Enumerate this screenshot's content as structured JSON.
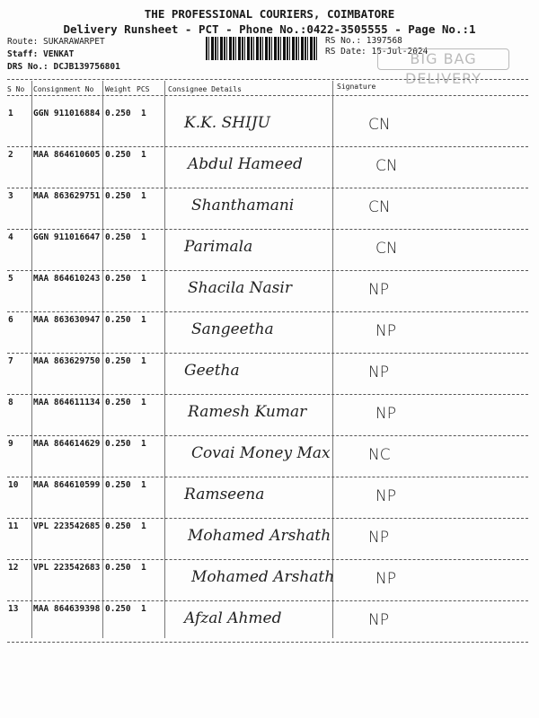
{
  "header": {
    "company": "THE PROFESSIONAL COURIERS, COIMBATORE",
    "subtitle": "Delivery Runsheet - PCT - Phone No.:0422-3505555 - Page No.:1",
    "route": "Route: SUKARAWARPET",
    "staff": "Staff: VENKAT",
    "drs": "DRS No.: DCJB139756801",
    "rs_no": "RS No.: 1397568",
    "rs_date": "RS Date: 15-Jul-2024",
    "stamp": "BIG BAG DELIVERY"
  },
  "columns": {
    "sno": "S No",
    "consignment": "Consignment No",
    "weight": "Weight",
    "pcs": "PCS",
    "consignee": "Consignee Details",
    "signature": "Signature"
  },
  "rows": [
    {
      "sno": "1",
      "consignment": "GGN 911016884",
      "weight": "0.250",
      "pcs": "1",
      "consignee": "K.K. SHIJU",
      "signature": "CN"
    },
    {
      "sno": "2",
      "consignment": "MAA 864610605",
      "weight": "0.250",
      "pcs": "1",
      "consignee": "Abdul Hameed",
      "signature": "CN"
    },
    {
      "sno": "3",
      "consignment": "MAA 863629751",
      "weight": "0.250",
      "pcs": "1",
      "consignee": "Shanthamani",
      "signature": "CN"
    },
    {
      "sno": "4",
      "consignment": "GGN 911016647",
      "weight": "0.250",
      "pcs": "1",
      "consignee": "Parimala",
      "signature": "CN"
    },
    {
      "sno": "5",
      "consignment": "MAA 864610243",
      "weight": "0.250",
      "pcs": "1",
      "consignee": "Shacila Nasir",
      "signature": "NP"
    },
    {
      "sno": "6",
      "consignment": "MAA 863630947",
      "weight": "0.250",
      "pcs": "1",
      "consignee": "Sangeetha",
      "signature": "NP"
    },
    {
      "sno": "7",
      "consignment": "MAA 863629750",
      "weight": "0.250",
      "pcs": "1",
      "consignee": "Geetha",
      "signature": "NP"
    },
    {
      "sno": "8",
      "consignment": "MAA 864611134",
      "weight": "0.250",
      "pcs": "1",
      "consignee": "Ramesh Kumar",
      "signature": "NP"
    },
    {
      "sno": "9",
      "consignment": "MAA 864614629",
      "weight": "0.250",
      "pcs": "1",
      "consignee": "Covai Money Max",
      "signature": "NC"
    },
    {
      "sno": "10",
      "consignment": "MAA 864610599",
      "weight": "0.250",
      "pcs": "1",
      "consignee": "Ramseena",
      "signature": "NP"
    },
    {
      "sno": "11",
      "consignment": "VPL 223542685",
      "weight": "0.250",
      "pcs": "1",
      "consignee": "Mohamed Arshath",
      "signature": "NP"
    },
    {
      "sno": "12",
      "consignment": "VPL 223542683",
      "weight": "0.250",
      "pcs": "1",
      "consignee": "Mohamed Arshath",
      "signature": "NP"
    },
    {
      "sno": "13",
      "consignment": "MAA 864639398",
      "weight": "0.250",
      "pcs": "1",
      "consignee": "Afzal Ahmed",
      "signature": "NP"
    }
  ]
}
